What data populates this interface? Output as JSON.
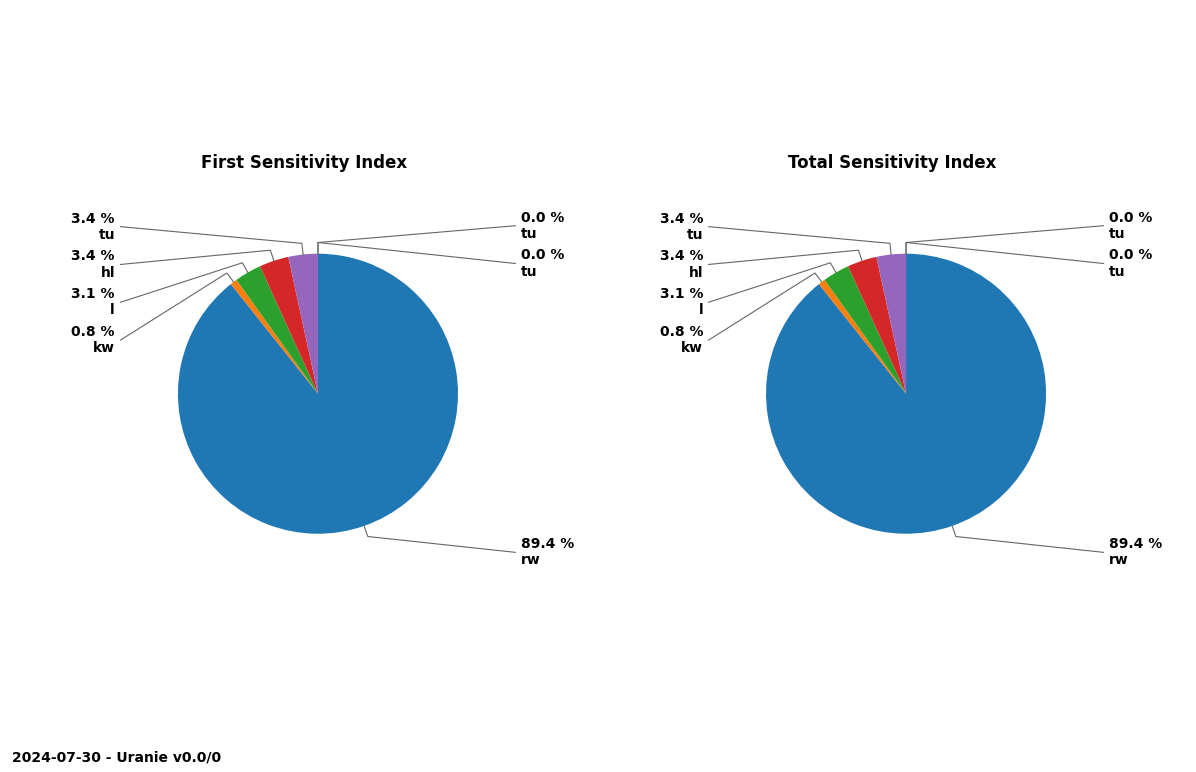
{
  "chart_data": [
    {
      "type": "pie",
      "title": "First Sensitivity Index",
      "categories": [
        "rw",
        "kw",
        "l",
        "hl",
        "tu",
        "tu",
        "tu"
      ],
      "values": [
        89.4,
        0.8,
        3.1,
        3.4,
        3.4,
        0.0,
        0.0
      ],
      "value_labels": [
        "89.4 %",
        "0.8 %",
        "3.1 %",
        "3.4 %",
        "3.4 %",
        "0.0 %",
        "0.0 %"
      ],
      "data_labels": true
    },
    {
      "type": "pie",
      "title": "Total Sensitivity Index",
      "categories": [
        "rw",
        "kw",
        "l",
        "hl",
        "tu",
        "tu",
        "tu"
      ],
      "values": [
        89.4,
        0.8,
        3.1,
        3.4,
        3.4,
        0.0,
        0.0
      ],
      "value_labels": [
        "89.4 %",
        "0.8 %",
        "3.1 %",
        "3.4 %",
        "3.4 %",
        "0.0 %",
        "0.0 %"
      ],
      "data_labels": true
    }
  ],
  "footer": "2024-07-30 - Uranie v0.0/0"
}
